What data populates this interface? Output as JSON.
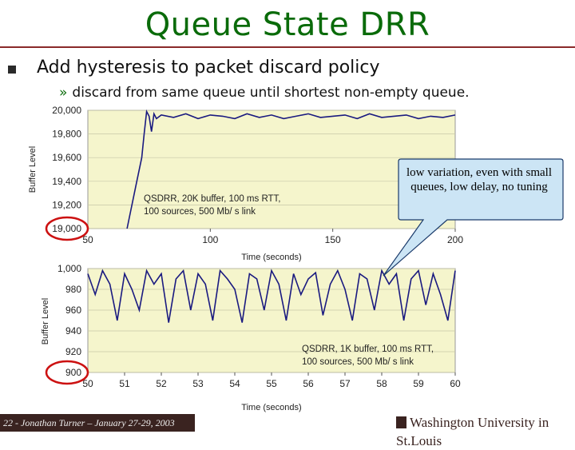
{
  "title": "Queue State DRR",
  "bullets": {
    "main": "Add hysteresis to packet discard policy",
    "sub_marker": "»",
    "sub": "discard from same queue until shortest non-empty queue."
  },
  "callout": "low variation, even with small queues, low delay, no tuning",
  "footer": "22 - Jonathan Turner – January 27-29, 2003",
  "logo_text": "Washington University in St.Louis",
  "colors": {
    "title": "#0a6b0a",
    "line": "#1a1a80",
    "plot_bg": "#f5f5cc",
    "callout_bg": "#cce5f5",
    "highlight": "#cc1111"
  },
  "chart_data": [
    {
      "type": "line",
      "xlabel": "Time (seconds)",
      "ylabel": "Buffer Level",
      "xlim": [
        50,
        200
      ],
      "ylim": [
        19000,
        20000
      ],
      "xticks": [
        50,
        100,
        150,
        200
      ],
      "yticks": [
        19000,
        19200,
        19400,
        19600,
        19800,
        20000
      ],
      "ytick_labels": [
        "19,000",
        "19,200",
        "19,400",
        "19,600",
        "19,800",
        "20,000"
      ],
      "annotation": [
        "QSDRR, 20K buffer, 100 ms RTT,",
        "100 sources, 500 Mb/ s link"
      ],
      "highlight_tick": "19,000",
      "series": [
        {
          "x": [
            66,
            68,
            70,
            72,
            73,
            74,
            75,
            76,
            77,
            78,
            80,
            85,
            90,
            95,
            100,
            105,
            110,
            115,
            120,
            125,
            130,
            135,
            140,
            145,
            150,
            155,
            160,
            165,
            170,
            175,
            180,
            185,
            190,
            195,
            200
          ],
          "values": [
            19000,
            19200,
            19400,
            19600,
            19800,
            19990,
            19950,
            19820,
            19970,
            19930,
            19960,
            19940,
            19970,
            19930,
            19960,
            19950,
            19930,
            19970,
            19940,
            19960,
            19930,
            19950,
            19970,
            19940,
            19950,
            19960,
            19930,
            19970,
            19940,
            19950,
            19960,
            19930,
            19950,
            19940,
            19960
          ]
        }
      ]
    },
    {
      "type": "line",
      "xlabel": "Time (seconds)",
      "ylabel": "Buffer Level",
      "xlim": [
        50,
        60
      ],
      "ylim": [
        900,
        1000
      ],
      "xticks": [
        50,
        51,
        52,
        53,
        54,
        55,
        56,
        57,
        58,
        59,
        60
      ],
      "yticks": [
        900,
        920,
        940,
        960,
        980,
        1000
      ],
      "ytick_labels": [
        "900",
        "920",
        "940",
        "960",
        "980",
        "1,000"
      ],
      "annotation": [
        "QSDRR, 1K buffer, 100 ms RTT,",
        "100 sources, 500 Mb/ s link"
      ],
      "highlight_tick": "900",
      "series": [
        {
          "x": [
            50.0,
            50.2,
            50.4,
            50.6,
            50.8,
            51.0,
            51.2,
            51.4,
            51.6,
            51.8,
            52.0,
            52.2,
            52.4,
            52.6,
            52.8,
            53.0,
            53.2,
            53.4,
            53.6,
            53.8,
            54.0,
            54.2,
            54.4,
            54.6,
            54.8,
            55.0,
            55.2,
            55.4,
            55.6,
            55.8,
            56.0,
            56.2,
            56.4,
            56.6,
            56.8,
            57.0,
            57.2,
            57.4,
            57.6,
            57.8,
            58.0,
            58.2,
            58.4,
            58.6,
            58.8,
            59.0,
            59.2,
            59.4,
            59.6,
            59.8,
            60.0
          ],
          "values": [
            995,
            975,
            998,
            985,
            950,
            995,
            980,
            960,
            998,
            985,
            995,
            948,
            990,
            998,
            960,
            995,
            985,
            950,
            998,
            990,
            980,
            948,
            995,
            990,
            960,
            998,
            985,
            950,
            995,
            975,
            990,
            996,
            955,
            985,
            998,
            980,
            950,
            995,
            990,
            960,
            998,
            985,
            995,
            950,
            990,
            998,
            965,
            995,
            975,
            950,
            998
          ]
        }
      ]
    }
  ]
}
